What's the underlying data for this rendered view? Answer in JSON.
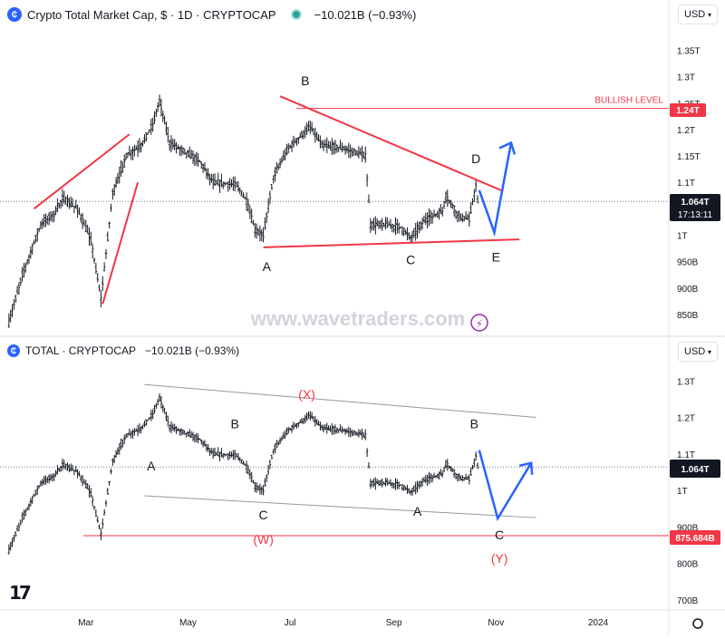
{
  "top": {
    "title": "Crypto Total Market Cap, $ · 1D · CRYPTOCAP",
    "change": "−10.021B (−0.93%)",
    "currency": "USD",
    "watermark": "www.wavetraders.com",
    "bullish_label": "BULLISH LEVEL",
    "bullish_value": "1.24T",
    "price_tag": "1.064T",
    "countdown": "17:13:11"
  },
  "bottom": {
    "title": "TOTAL · CRYPTOCAP",
    "change": "−10.021B (−0.93%)",
    "currency": "USD",
    "price_tag": "1.064T",
    "support_value": "875.684B"
  },
  "colors": {
    "candle": "#131722",
    "red": "#f23645",
    "blue": "#2962ff",
    "grey_line": "#9598a1",
    "price_tag": "#131722",
    "level_tag": "#f23645",
    "watermark": "#d1d4dc"
  },
  "chart_data": [
    {
      "type": "candlestick",
      "title": "Crypto Total Market Cap, $ · 1D · CRYPTOCAP",
      "y_unit": "USD",
      "y_ticks": [
        "850B",
        "900B",
        "950B",
        "1T",
        "1.05T",
        "1.1T",
        "1.15T",
        "1.2T",
        "1.25T",
        "1.3T",
        "1.35T"
      ],
      "ylim": [
        820,
        1380
      ],
      "x_ticks": [
        "Mar",
        "May",
        "Jul",
        "Sep",
        "Nov",
        "2024"
      ],
      "anchors": [
        {
          "d": "2023-01-14",
          "v": 835
        },
        {
          "d": "2023-01-22",
          "v": 925
        },
        {
          "d": "2023-02-02",
          "v": 1020
        },
        {
          "d": "2023-02-10",
          "v": 1040
        },
        {
          "d": "2023-02-15",
          "v": 1070
        },
        {
          "d": "2023-02-24",
          "v": 1050
        },
        {
          "d": "2023-03-04",
          "v": 990
        },
        {
          "d": "2023-03-10",
          "v": 880
        },
        {
          "d": "2023-03-17",
          "v": 1080
        },
        {
          "d": "2023-03-25",
          "v": 1150
        },
        {
          "d": "2023-04-03",
          "v": 1170
        },
        {
          "d": "2023-04-10",
          "v": 1210
        },
        {
          "d": "2023-04-14",
          "v": 1255
        },
        {
          "d": "2023-04-20",
          "v": 1175
        },
        {
          "d": "2023-04-28",
          "v": 1160
        },
        {
          "d": "2023-05-08",
          "v": 1140
        },
        {
          "d": "2023-05-16",
          "v": 1100
        },
        {
          "d": "2023-05-30",
          "v": 1095
        },
        {
          "d": "2023-06-05",
          "v": 1065
        },
        {
          "d": "2023-06-10",
          "v": 1010
        },
        {
          "d": "2023-06-15",
          "v": 1000
        },
        {
          "d": "2023-06-21",
          "v": 1110
        },
        {
          "d": "2023-06-30",
          "v": 1165
        },
        {
          "d": "2023-07-13",
          "v": 1205
        },
        {
          "d": "2023-07-20",
          "v": 1170
        },
        {
          "d": "2023-08-01",
          "v": 1165
        },
        {
          "d": "2023-08-15",
          "v": 1150
        },
        {
          "d": "2023-08-18",
          "v": 1020
        },
        {
          "d": "2023-08-28",
          "v": 1020
        },
        {
          "d": "2023-09-05",
          "v": 1015
        },
        {
          "d": "2023-09-11",
          "v": 995
        },
        {
          "d": "2023-09-20",
          "v": 1030
        },
        {
          "d": "2023-09-30",
          "v": 1045
        },
        {
          "d": "2023-10-02",
          "v": 1075
        },
        {
          "d": "2023-10-10",
          "v": 1035
        },
        {
          "d": "2023-10-16",
          "v": 1030
        },
        {
          "d": "2023-10-20",
          "v": 1095
        },
        {
          "d": "2023-10-21",
          "v": 1064
        }
      ],
      "levels": [
        {
          "label": "BULLISH LEVEL",
          "value": 1240
        }
      ],
      "last_price": 1064,
      "waves": [
        "A",
        "B",
        "C",
        "D",
        "E"
      ]
    },
    {
      "type": "candlestick",
      "title": "TOTAL · CRYPTOCAP",
      "y_unit": "USD",
      "y_ticks": [
        "700B",
        "800B",
        "900B",
        "1T",
        "1.1T",
        "1.2T",
        "1.3T"
      ],
      "ylim": [
        680,
        1340
      ],
      "x_ticks": [
        "Mar",
        "May",
        "Jul",
        "Sep",
        "Nov",
        "2024"
      ],
      "levels": [
        {
          "value": 875.684
        }
      ],
      "last_price": 1064,
      "waves": [
        "(W)",
        "(X)",
        "(Y)",
        "A",
        "B",
        "C"
      ]
    }
  ]
}
